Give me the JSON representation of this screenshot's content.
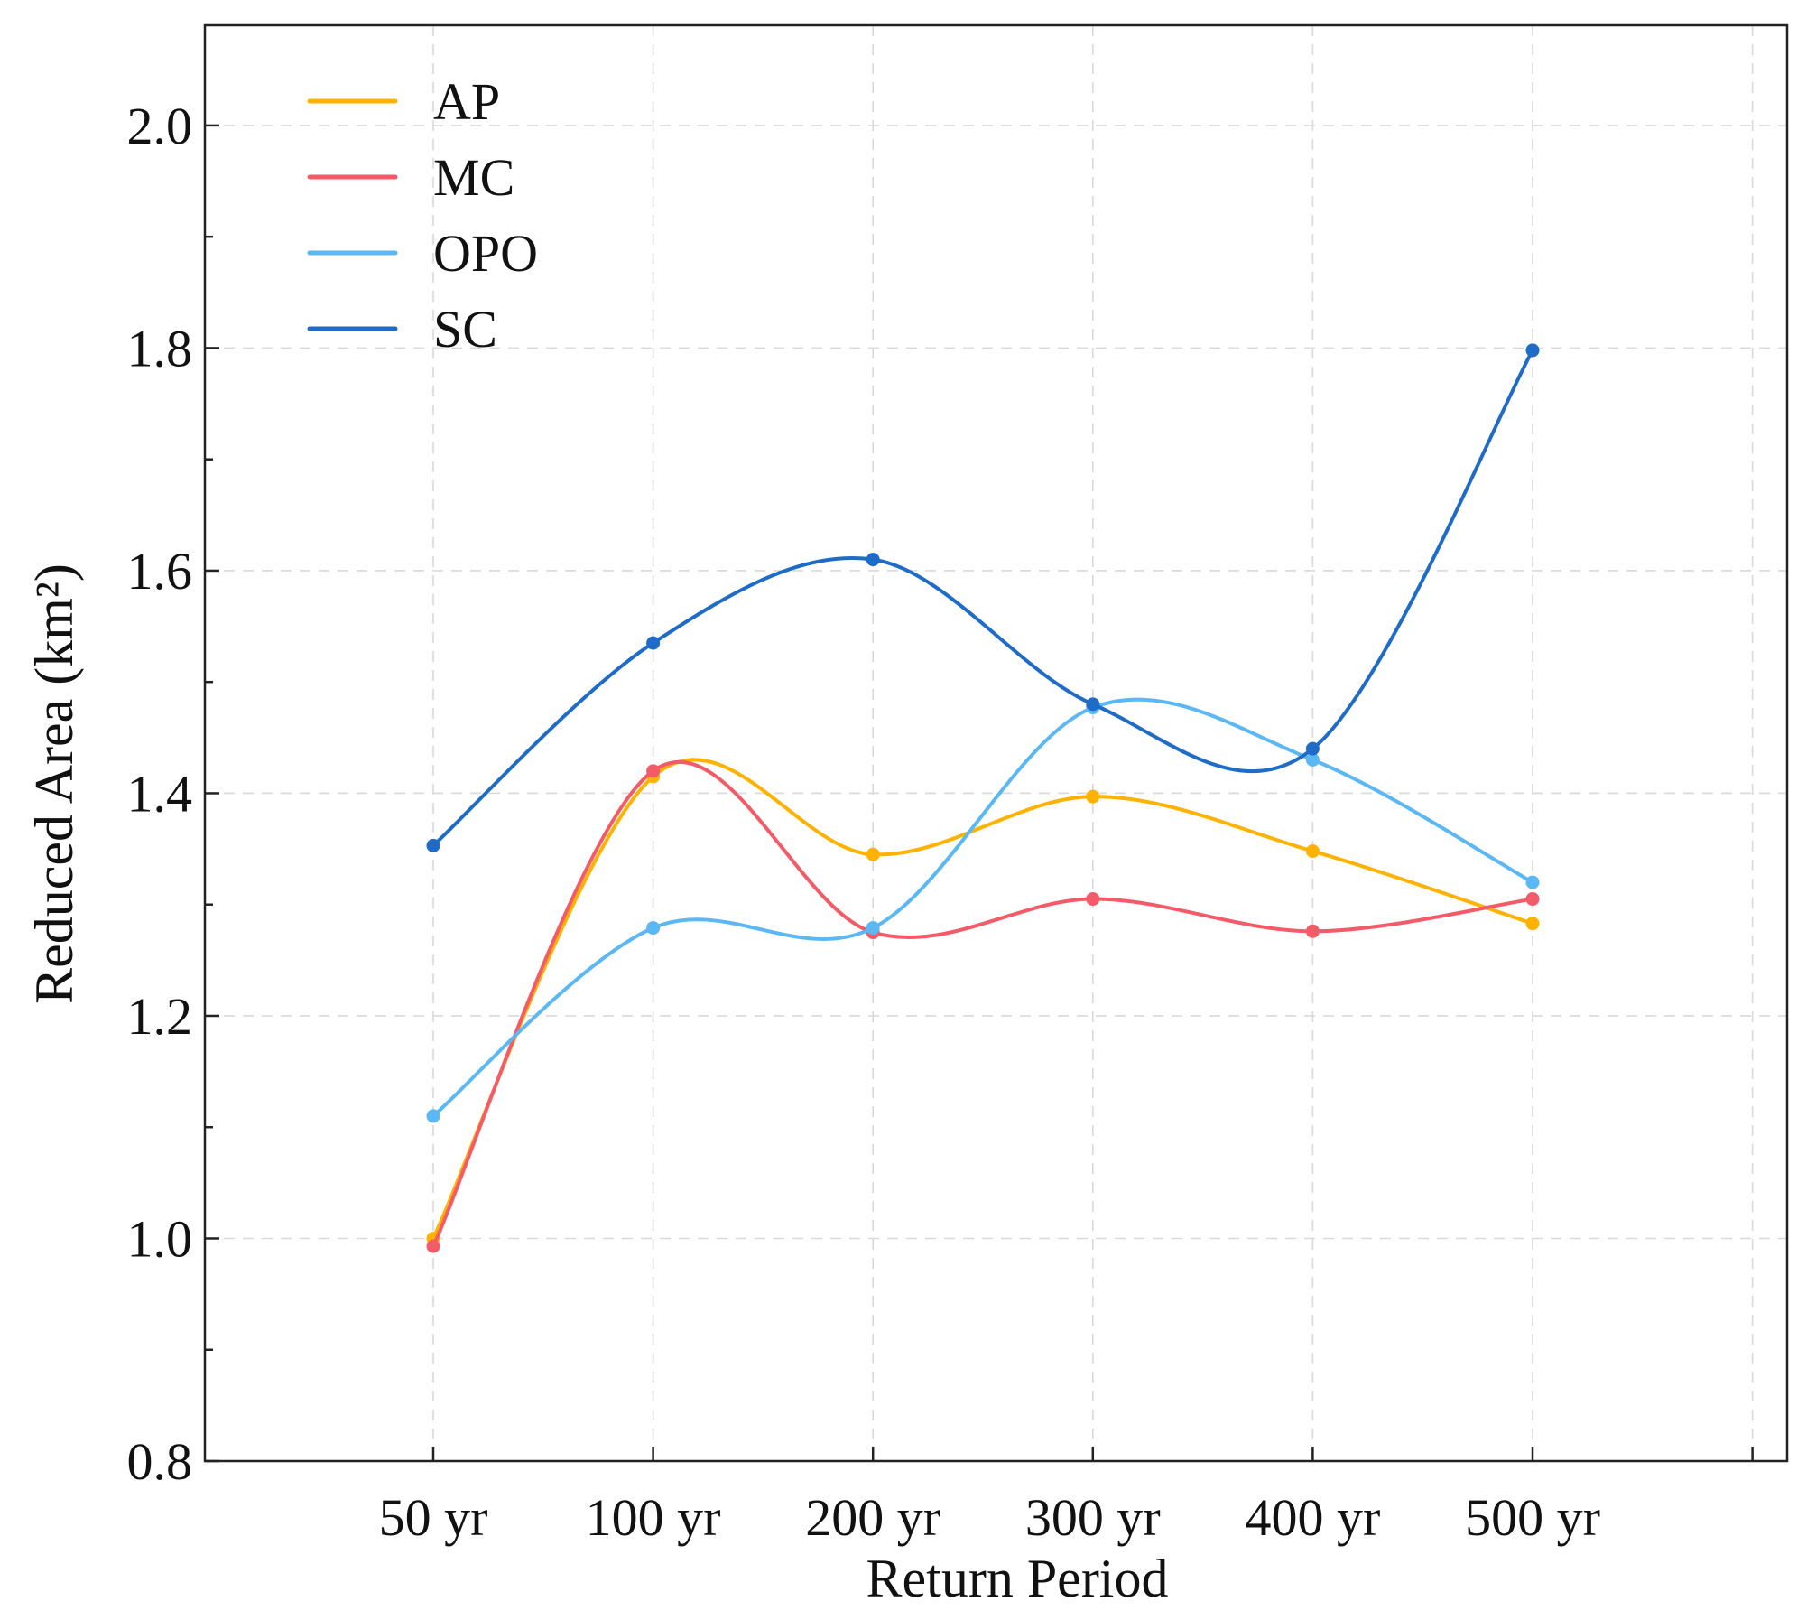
{
  "chart_data": {
    "type": "line",
    "title": "",
    "xlabel": "Return Period",
    "ylabel": "Reduced Area (km²)",
    "categories": [
      "50 yr",
      "100 yr",
      "200 yr",
      "300 yr",
      "400 yr",
      "500 yr"
    ],
    "ylim": [
      0.8,
      2.09
    ],
    "yticks": [
      0.8,
      1.0,
      1.2,
      1.4,
      1.6,
      1.8,
      2.0
    ],
    "ytick_labels": [
      "0.8",
      "1.0",
      "1.2",
      "1.4",
      "1.6",
      "1.8",
      "2.0"
    ],
    "grid": true,
    "smooth": true,
    "legend_position": "top-left",
    "series": [
      {
        "name": "AP",
        "color": "#FFB300",
        "values": [
          1.0,
          1.415,
          1.345,
          1.397,
          1.348,
          1.283
        ]
      },
      {
        "name": "MC",
        "color": "#F45B69",
        "values": [
          0.993,
          1.42,
          1.275,
          1.305,
          1.276,
          1.305
        ]
      },
      {
        "name": "OPO",
        "color": "#5BB8F5",
        "values": [
          1.11,
          1.279,
          1.279,
          1.477,
          1.43,
          1.32
        ]
      },
      {
        "name": "SC",
        "color": "#1F6CC8",
        "values": [
          1.353,
          1.535,
          1.61,
          1.48,
          1.44,
          1.798
        ]
      }
    ]
  }
}
